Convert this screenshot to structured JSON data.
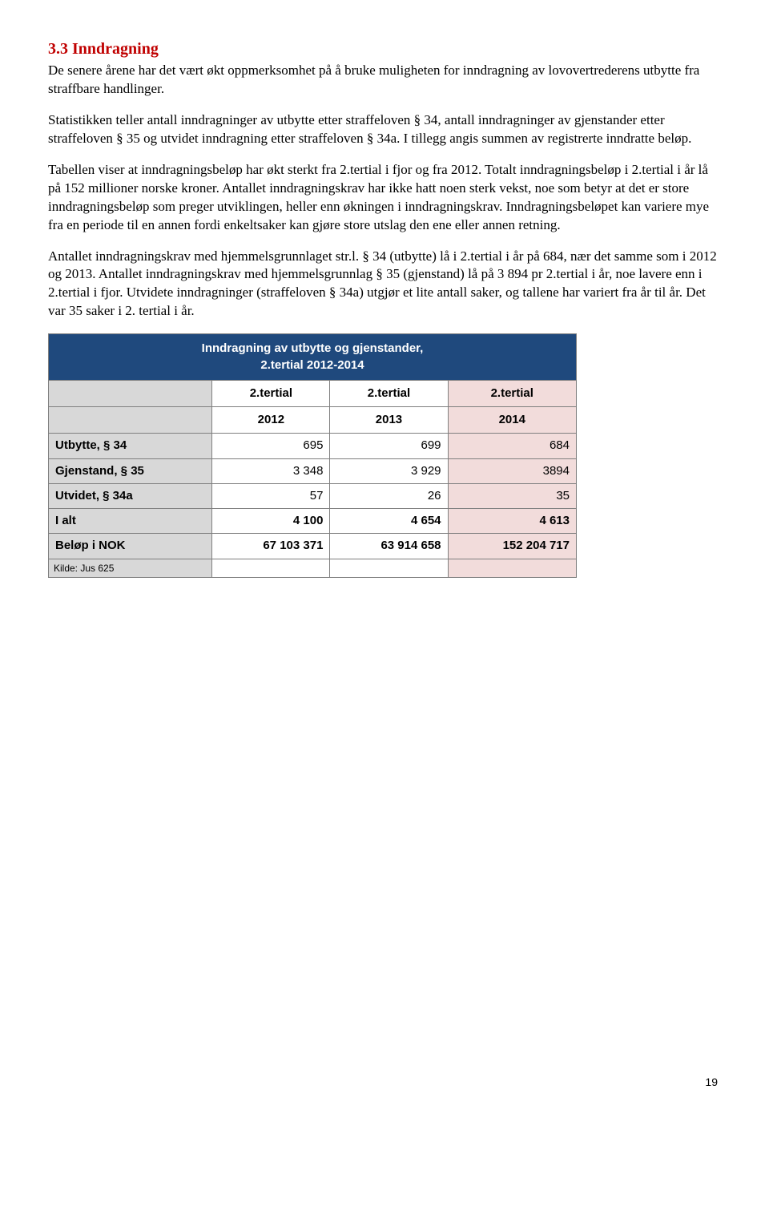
{
  "heading": "3.3 Inndragning",
  "paragraphs": {
    "p1": "De senere årene har det vært økt oppmerksomhet på å bruke muligheten for inndragning av lovovertrederens utbytte fra straffbare handlinger.",
    "p2": "Statistikken teller antall inndragninger av utbytte etter straffeloven § 34, antall inndragninger av gjenstander etter straffeloven § 35 og utvidet inndragning etter straffeloven § 34a. I tillegg angis summen av registrerte inndratte beløp.",
    "p3": "Tabellen viser at inndragningsbeløp har økt sterkt fra 2.tertial i fjor og fra 2012. Totalt inndragningsbeløp i 2.tertial i år lå på 152 millioner norske kroner. Antallet inndragningskrav har ikke hatt noen sterk vekst, noe som betyr at det er store inndragningsbeløp som preger utviklingen, heller enn økningen i inndragningskrav. Inndragningsbeløpet kan variere mye fra en periode til en annen fordi enkeltsaker kan gjøre store utslag den ene eller annen retning.",
    "p4": "Antallet inndragningskrav med hjemmelsgrunnlaget str.l. § 34 (utbytte) lå i 2.tertial i år på 684, nær det samme som i 2012 og 2013. Antallet inndragningskrav med hjemmelsgrunnlag § 35 (gjenstand) lå på 3 894 pr 2.tertial i år, noe lavere enn i 2.tertial i fjor. Utvidete inndragninger (straffeloven § 34a) utgjør et lite antall saker, og tallene har variert fra år til år. Det var 35 saker i 2. tertial i år."
  },
  "table": {
    "title_l1": "Inndragning av utbytte og gjenstander,",
    "title_l2": "2.tertial 2012-2014",
    "col_blank": "",
    "header_top": {
      "c1": "2.tertial",
      "c2": "2.tertial",
      "c3": "2.tertial"
    },
    "header_year": {
      "c1": "2012",
      "c2": "2013",
      "c3": "2014"
    },
    "rows": [
      {
        "label": "Utbytte, § 34",
        "v1": "695",
        "v2": "699",
        "v3": "684"
      },
      {
        "label": "Gjenstand, § 35",
        "v1": "3 348",
        "v2": "3 929",
        "v3": "3894"
      },
      {
        "label": "Utvidet, § 34a",
        "v1": "57",
        "v2": "26",
        "v3": "35"
      },
      {
        "label": "I alt",
        "v1": "4 100",
        "v2": "4 654",
        "v3": "4 613"
      },
      {
        "label": "Beløp i NOK",
        "v1": "67 103 371",
        "v2": "63 914 658",
        "v3": "152 204 717"
      }
    ],
    "source": "Kilde: Jus 625"
  },
  "page_number": "19",
  "colors": {
    "heading": "#c00000",
    "table_title_bg": "#1f497d",
    "label_bg": "#d8d8d8",
    "highlight_bg": "#f2dcdb",
    "border": "#7f7f7f",
    "background": "#ffffff"
  }
}
